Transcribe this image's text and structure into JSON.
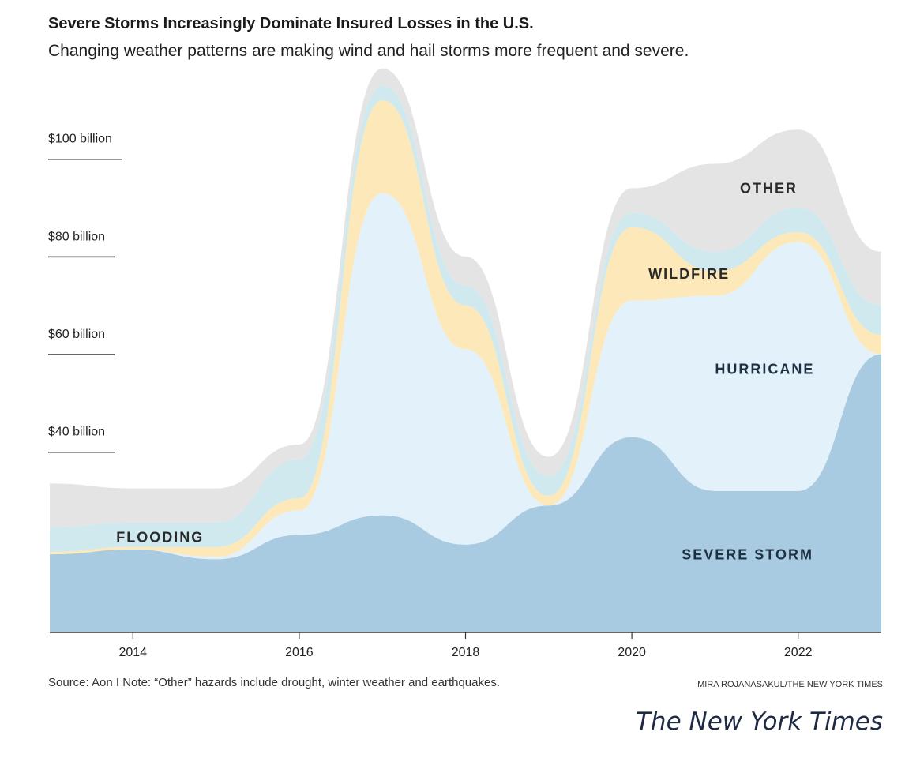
{
  "chart_data": {
    "type": "area",
    "stacked": true,
    "smooth": true,
    "title": "Severe Storms Increasingly Dominate Insured Losses in the U.S.",
    "subtitle": "Changing weather patterns are making wind and hail storms more frequent and severe.",
    "x": [
      2013,
      2014,
      2015,
      2016,
      2017,
      2018,
      2019,
      2020,
      2021,
      2022,
      2023
    ],
    "x_ticks": [
      2014,
      2016,
      2018,
      2020,
      2022
    ],
    "x_tick_labels": [
      "2014",
      "2016",
      "2018",
      "2020",
      "2022"
    ],
    "xlim": [
      2013,
      2023
    ],
    "ylim": [
      0,
      115
    ],
    "y_ticks": [
      40,
      60,
      80,
      100
    ],
    "y_tick_labels": [
      "$40 billion",
      "$60 billion",
      "$80 billion",
      "$100 billion"
    ],
    "grid": false,
    "legend": "inline labels",
    "series": [
      {
        "name": "SEVERE STORM",
        "color": "#a9cbe1",
        "label_color": "#1e3142",
        "values": [
          16,
          17,
          15,
          20,
          24,
          18,
          26,
          40,
          29,
          29,
          57
        ]
      },
      {
        "name": "HURRICANE",
        "color": "#e3f1fa",
        "label_color": "#1e3142",
        "values": [
          0,
          0,
          0.5,
          5,
          66,
          40,
          0,
          28,
          40,
          51,
          0
        ]
      },
      {
        "name": "WILDFIRE",
        "color": "#fce8b8",
        "label_color": "#2a2a2a",
        "values": [
          0.5,
          0.5,
          2,
          2.5,
          19,
          9,
          2,
          15,
          5,
          2,
          4
        ]
      },
      {
        "name": "FLOODING",
        "color": "#cfe9ef",
        "label_color": "#2a2a2a",
        "values": [
          5,
          5,
          5,
          8,
          3,
          4,
          4,
          3,
          4,
          5,
          6
        ]
      },
      {
        "name": "OTHER",
        "color": "#e4e4e4",
        "label_color": "#2a2a2a",
        "values": [
          9,
          7,
          7,
          3,
          3.5,
          6,
          4,
          5,
          18,
          16,
          11
        ]
      }
    ],
    "series_labels": [
      {
        "series": "SEVERE STORM",
        "x": 2020.6,
        "y": 15
      },
      {
        "series": "HURRICANE",
        "x": 2021.0,
        "y": 53
      },
      {
        "series": "WILDFIRE",
        "x": 2020.2,
        "y": 72.5
      },
      {
        "series": "FLOODING",
        "x": 2013.8,
        "y": 18.5
      },
      {
        "series": "OTHER",
        "x": 2021.3,
        "y": 90
      }
    ],
    "source_note": "Source: Aon I Note: “Other” hazards include drought, winter weather and earthquakes.",
    "credit": "MIRA ROJANASAKUL/THE NEW YORK TIMES"
  },
  "publisher": "The New York Times"
}
